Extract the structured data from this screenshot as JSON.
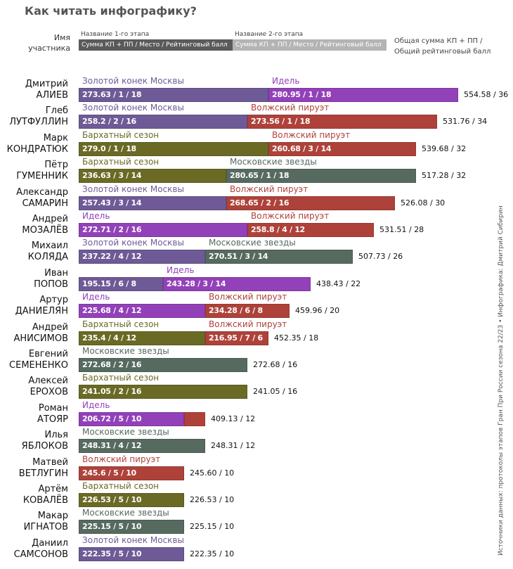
{
  "title": "Как читать инфографику?",
  "legend": {
    "name_label": "Имя участника",
    "stage1_caption": "Название 1-го этапа",
    "stage1_bar": "Сумма КП + ПП / Место / Рейтинговый балл",
    "stage2_caption": "Название 2-го этапа",
    "stage2_bar": "Сумма КП + ПП / Место / Рейтинговый балл",
    "total_caption": "Общая сумма КП + ПП / Общий рейтинговый балл",
    "stage1_color": "#5a5a5a",
    "stage2_color": "#b4b4b4"
  },
  "source": "Источники данных: протоколы этапов Гран При России сезона 22/23 • Инфографика: Дмитрий Сибирин",
  "colors": {
    "Золотой конек Москвы": "#6e5a96",
    "Идель": "#9241b9",
    "Волжский пируэт": "#ae423a",
    "Бархатный сезон": "#6a6a25",
    "Московские звезды": "#566a60"
  },
  "chart_data": {
    "type": "bar",
    "stacked": true,
    "orientation": "horizontal",
    "value_unit": "rating points",
    "rows": [
      {
        "first": "Дмитрий",
        "last": "АЛИЕВ",
        "total": "554.58 / 36",
        "segments": [
          {
            "label": "Золотой конек Москвы",
            "color_key": "Золотой конек Москвы",
            "text": "273.63 / 1 / 18",
            "points": 18
          },
          {
            "label": "Идель",
            "color_key": "Идель",
            "text": "280.95 / 1 / 18",
            "points": 18
          }
        ]
      },
      {
        "first": "Глеб",
        "last": "ЛУТФУЛЛИН",
        "total": "531.76 / 34",
        "segments": [
          {
            "label": "Золотой конек Москвы",
            "color_key": "Золотой конек Москвы",
            "text": "258.2 / 2 / 16",
            "points": 16
          },
          {
            "label": "Волжский пируэт",
            "color_key": "Волжский пируэт",
            "text": "273.56 / 1 / 18",
            "points": 18
          }
        ]
      },
      {
        "first": "Марк",
        "last": "КОНДРАТЮК",
        "total": "539.68 / 32",
        "segments": [
          {
            "label": "Бархатный сезон",
            "color_key": "Бархатный сезон",
            "text": "279.0 / 1 / 18",
            "points": 18
          },
          {
            "label": "Волжский пируэт",
            "color_key": "Волжский пируэт",
            "text": "260.68 / 3 / 14",
            "points": 14
          }
        ]
      },
      {
        "first": "Пётр",
        "last": "ГУМЕННИК",
        "total": "517.28 / 32",
        "segments": [
          {
            "label": "Бархатный сезон",
            "color_key": "Бархатный сезон",
            "text": "236.63 / 3 / 14",
            "points": 14
          },
          {
            "label": "Московские звезды",
            "color_key": "Московские звезды",
            "text": "280.65 / 1 / 18",
            "points": 18
          }
        ]
      },
      {
        "first": "Александр",
        "last": "САМАРИН",
        "total": "526.08 / 30",
        "segments": [
          {
            "label": "Золотой конек Москвы",
            "color_key": "Золотой конек Москвы",
            "text": "257.43 / 3 / 14",
            "points": 14
          },
          {
            "label": "Волжский пируэт",
            "color_key": "Волжский пируэт",
            "text": "268.65 / 2 / 16",
            "points": 16
          }
        ]
      },
      {
        "first": "Андрей",
        "last": "МОЗАЛЁВ",
        "total": "531.51 / 28",
        "segments": [
          {
            "label": "Идель",
            "color_key": "Идель",
            "text": "272.71 / 2 / 16",
            "points": 16
          },
          {
            "label": "Волжский пируэт",
            "color_key": "Волжский пируэт",
            "text": "258.8 / 4 / 12",
            "points": 12
          }
        ]
      },
      {
        "first": "Михаил",
        "last": "КОЛЯДА",
        "total": "507.73 / 26",
        "segments": [
          {
            "label": "Золотой конек Москвы",
            "color_key": "Золотой конек Москвы",
            "text": "237.22 / 4 / 12",
            "points": 12
          },
          {
            "label": "Московские звезды",
            "color_key": "Московские звезды",
            "text": "270.51 / 3 / 14",
            "points": 14
          }
        ]
      },
      {
        "first": "Иван",
        "last": "ПОПОВ",
        "total": "438.43 / 22",
        "segments": [
          {
            "label": "",
            "color_key": "Золотой конек Москвы",
            "text": "195.15 / 6 / 8",
            "points": 8
          },
          {
            "label": "Идель",
            "color_key": "Идель",
            "text": "243.28 / 3 / 14",
            "points": 14
          }
        ]
      },
      {
        "first": "Артур",
        "last": "ДАНИЕЛЯН",
        "total": "459.96 / 20",
        "segments": [
          {
            "label": "Идель",
            "color_key": "Идель",
            "text": "225.68 / 4 / 12",
            "points": 12
          },
          {
            "label": "Волжский пируэт",
            "color_key": "Волжский пируэт",
            "text": "234.28 / 6 / 8",
            "points": 8
          }
        ]
      },
      {
        "first": "Андрей",
        "last": "АНИСИМОВ",
        "total": "452.35 / 18",
        "segments": [
          {
            "label": "Бархатный сезон",
            "color_key": "Бархатный сезон",
            "text": "235.4 / 4 / 12",
            "points": 12
          },
          {
            "label": "Волжский пируэт",
            "color_key": "Волжский пируэт",
            "text": "216.95 / 7 / 6",
            "points": 6
          }
        ]
      },
      {
        "first": "Евгений",
        "last": "СЕМЕНЕНКО",
        "total": "272.68 / 16",
        "segments": [
          {
            "label": "Московские звезды",
            "color_key": "Московские звезды",
            "text": "272.68 / 2 / 16",
            "points": 16
          }
        ]
      },
      {
        "first": "Алексей",
        "last": "ЕРОХОВ",
        "total": "241.05 / 16",
        "segments": [
          {
            "label": "Бархатный сезон",
            "color_key": "Бархатный сезон",
            "text": "241.05 / 2 / 16",
            "points": 16
          }
        ]
      },
      {
        "first": "Роман",
        "last": "АТОЯР",
        "total": "409.13 / 12",
        "segments": [
          {
            "label": "Идель",
            "color_key": "Идель",
            "text": "206.72 / 5 / 10",
            "points": 10
          },
          {
            "label": "",
            "color_key": "Волжский пируэт",
            "text": "",
            "points": 2
          }
        ]
      },
      {
        "first": "Илья",
        "last": "ЯБЛОКОВ",
        "total": "248.31 / 12",
        "segments": [
          {
            "label": "Московские звезды",
            "color_key": "Московские звезды",
            "text": "248.31 / 4 / 12",
            "points": 12
          }
        ]
      },
      {
        "first": "Матвей",
        "last": "ВЕТЛУГИН",
        "total": "245.60 / 10",
        "segments": [
          {
            "label": "Волжский пируэт",
            "color_key": "Волжский пируэт",
            "text": "245.6 / 5 / 10",
            "points": 10
          }
        ]
      },
      {
        "first": "Артём",
        "last": "КОВАЛЁВ",
        "total": "226.53 / 10",
        "segments": [
          {
            "label": "Бархатный сезон",
            "color_key": "Бархатный сезон",
            "text": "226.53 / 5 / 10",
            "points": 10
          }
        ]
      },
      {
        "first": "Макар",
        "last": "ИГНАТОВ",
        "total": "225.15 / 10",
        "segments": [
          {
            "label": "Московские звезды",
            "color_key": "Московские звезды",
            "text": "225.15 / 5 / 10",
            "points": 10
          }
        ]
      },
      {
        "first": "Даниил",
        "last": "САМСОНОВ",
        "total": "222.35 / 10",
        "segments": [
          {
            "label": "Золотой конек Москвы",
            "color_key": "Золотой конек Москвы",
            "text": "222.35 / 5 / 10",
            "points": 10
          }
        ]
      }
    ]
  }
}
